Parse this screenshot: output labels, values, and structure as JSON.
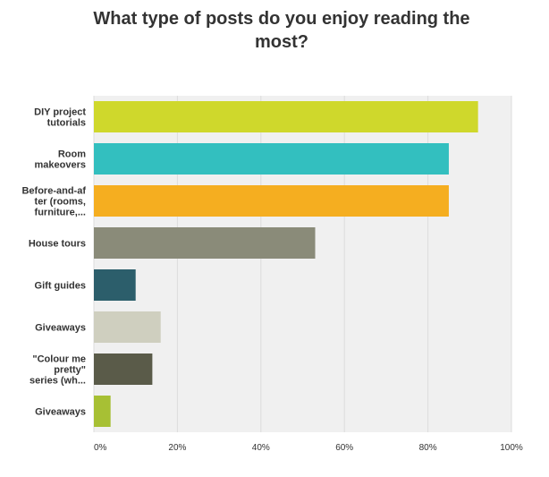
{
  "chart_data": {
    "type": "bar",
    "orientation": "horizontal",
    "title": "What type of posts do you enjoy reading the most?",
    "categories": [
      [
        "DIY project",
        "tutorials"
      ],
      [
        "Room",
        "makeovers"
      ],
      [
        "Before-and-af",
        "ter (rooms,",
        "furniture,..."
      ],
      [
        "House tours"
      ],
      [
        "Gift guides"
      ],
      [
        "Giveaways"
      ],
      [
        "\"Colour me",
        "pretty\"",
        "series (wh..."
      ],
      [
        "Giveaways"
      ]
    ],
    "values": [
      92,
      85,
      85,
      53,
      10,
      16,
      14,
      4
    ],
    "colors": [
      "#cfd82c",
      "#33bfbf",
      "#f5ae20",
      "#8a8b79",
      "#2c5e6b",
      "#cfcfbf",
      "#5a5b49",
      "#a7c034"
    ],
    "xlim": [
      0,
      100
    ],
    "xticks": [
      0,
      20,
      40,
      60,
      80,
      100
    ],
    "tick_suffix": "%",
    "plot_background": "#f0f0f0",
    "grid": true
  }
}
